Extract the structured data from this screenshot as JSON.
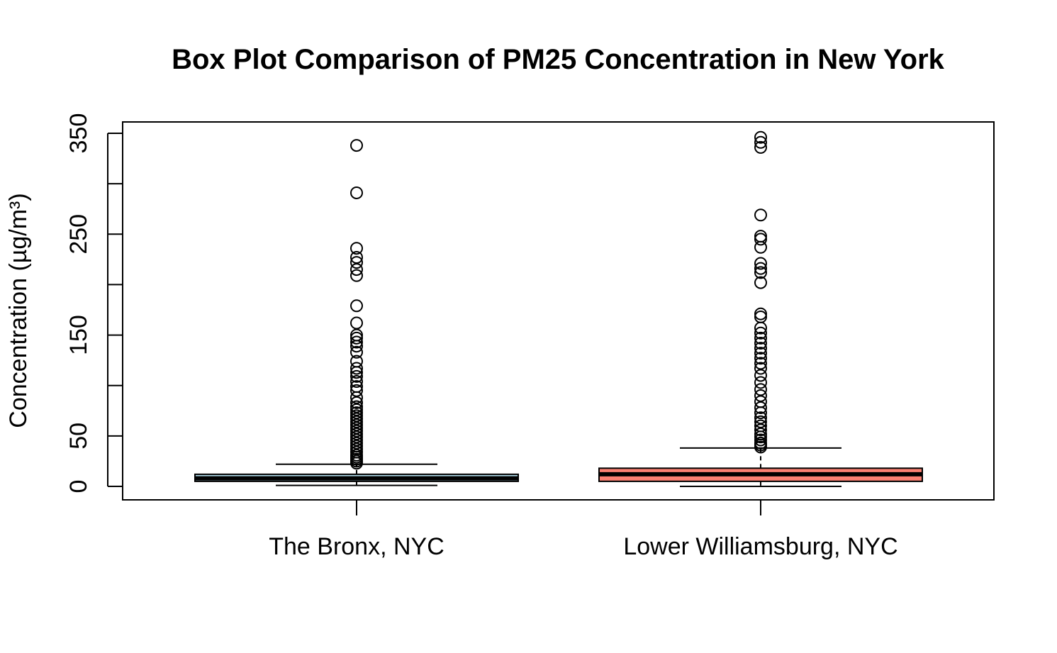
{
  "chart_data": {
    "type": "box",
    "title": "Box Plot Comparison of PM25 Concentration in New York",
    "xlabel": "",
    "ylabel": "Concentration (µg/m³)",
    "ylim": [
      -14,
      360
    ],
    "yticks": [
      0,
      50,
      100,
      150,
      200,
      250,
      300,
      350
    ],
    "ytick_labels": [
      "0",
      "50",
      "",
      "150",
      "",
      "250",
      "",
      "350"
    ],
    "grid": false,
    "categories": [
      "The Bronx, NYC",
      "Lower Williamsburg, NYC"
    ],
    "boxes": [
      {
        "label": "The Bronx, NYC",
        "color": "#ADD8E6",
        "whisker_low": 1,
        "q1": 5,
        "median": 8,
        "q3": 12,
        "whisker_high": 22,
        "outliers": [
          338,
          291,
          236,
          227,
          222,
          215,
          209,
          179,
          162,
          150,
          147,
          143,
          139,
          133,
          124,
          117,
          113,
          109,
          104,
          99,
          95,
          88,
          83,
          79,
          76,
          73,
          70,
          67,
          64,
          61,
          58,
          55,
          52,
          49,
          46,
          43,
          40,
          37,
          34,
          31,
          29,
          27,
          25,
          23
        ]
      },
      {
        "label": "Lower Williamsburg, NYC",
        "color": "#FA8072",
        "whisker_low": 0,
        "q1": 5,
        "median": 12,
        "q3": 18,
        "whisker_high": 38,
        "outliers": [
          346,
          341,
          336,
          269,
          248,
          245,
          237,
          221,
          216,
          212,
          202,
          171,
          168,
          157,
          152,
          147,
          142,
          137,
          132,
          127,
          122,
          117,
          110,
          103,
          96,
          90,
          84,
          78,
          73,
          68,
          64,
          60,
          56,
          52,
          49,
          46,
          43,
          41,
          39
        ]
      }
    ]
  }
}
